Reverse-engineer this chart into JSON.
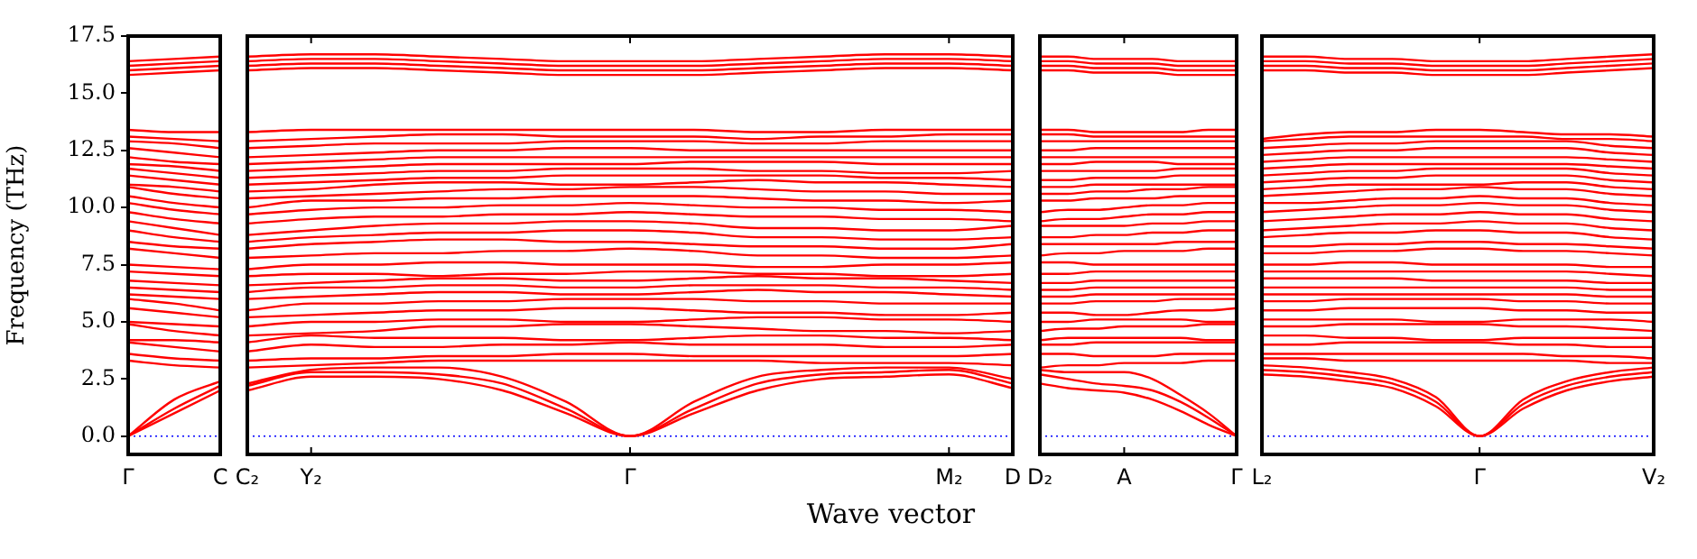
{
  "chart_data": [
    {
      "type": "line",
      "ylabel": "Frequency (THz)",
      "color": "#ff0000",
      "categories": [
        "Γ",
        null,
        "C"
      ],
      "ylim": [
        -0.8,
        17.5
      ],
      "yticks": [
        {
          "value": 0,
          "label": "0.0"
        },
        {
          "value": 2.5,
          "label": "2.5"
        },
        {
          "value": 5,
          "label": "5.0"
        },
        {
          "value": 7.5,
          "label": "7.5"
        },
        {
          "value": 10,
          "label": "10.0"
        },
        {
          "value": 12.5,
          "label": "12.5"
        },
        {
          "value": 15,
          "label": "15.0"
        },
        {
          "value": 17.5,
          "label": "17.5"
        }
      ],
      "ref_lines": [
        {
          "axis": "y",
          "value": 0,
          "color": "#0000ff",
          "line_style": "dotted"
        }
      ],
      "series": [
        {
          "values": [
            0,
            1.0,
            2.0
          ]
        },
        {
          "values": [
            0,
            1.2,
            2.2
          ]
        },
        {
          "values": [
            0,
            1.6,
            2.4
          ]
        },
        {
          "values": [
            3.3,
            3.1,
            3.0
          ]
        },
        {
          "values": [
            3.6,
            3.4,
            3.3
          ]
        },
        {
          "values": [
            4.1,
            3.9,
            3.7
          ]
        },
        {
          "values": [
            4.2,
            4.2,
            4.1
          ]
        },
        {
          "values": [
            4.9,
            4.6,
            4.4
          ]
        },
        {
          "values": [
            5.0,
            4.9,
            4.8
          ]
        },
        {
          "values": [
            5.6,
            5.4,
            5.2
          ]
        },
        {
          "values": [
            6.0,
            5.8,
            5.5
          ]
        },
        {
          "values": [
            6.2,
            6.1,
            6.0
          ]
        },
        {
          "values": [
            6.5,
            6.4,
            6.3
          ]
        },
        {
          "values": [
            6.8,
            6.7,
            6.6
          ]
        },
        {
          "values": [
            7.2,
            7.1,
            7.0
          ]
        },
        {
          "values": [
            7.5,
            7.4,
            7.3
          ]
        },
        {
          "values": [
            8.2,
            8.0,
            7.8
          ]
        },
        {
          "values": [
            8.5,
            8.3,
            8.2
          ]
        },
        {
          "values": [
            9.0,
            8.7,
            8.5
          ]
        },
        {
          "values": [
            9.4,
            9.1,
            8.8
          ]
        },
        {
          "values": [
            9.8,
            9.5,
            9.3
          ]
        },
        {
          "values": [
            10.2,
            9.9,
            9.7
          ]
        },
        {
          "values": [
            10.5,
            10.2,
            10.0
          ]
        },
        {
          "values": [
            10.9,
            10.6,
            10.4
          ]
        },
        {
          "values": [
            11.0,
            10.9,
            10.7
          ]
        },
        {
          "values": [
            11.4,
            11.2,
            11.0
          ]
        },
        {
          "values": [
            11.7,
            11.5,
            11.3
          ]
        },
        {
          "values": [
            11.9,
            11.8,
            11.6
          ]
        },
        {
          "values": [
            12.2,
            12.0,
            11.9
          ]
        },
        {
          "values": [
            12.6,
            12.4,
            12.2
          ]
        },
        {
          "values": [
            12.9,
            12.8,
            12.6
          ]
        },
        {
          "values": [
            13.1,
            13.0,
            12.9
          ]
        },
        {
          "values": [
            13.4,
            13.3,
            13.3
          ]
        },
        {
          "values": [
            15.8,
            15.9,
            16.0
          ]
        },
        {
          "values": [
            16.0,
            16.1,
            16.2
          ]
        },
        {
          "values": [
            16.2,
            16.3,
            16.4
          ]
        },
        {
          "values": [
            16.4,
            16.5,
            16.6
          ]
        }
      ]
    },
    {
      "type": "line",
      "xlabel": "Wave vector",
      "color": "#ff0000",
      "tick_labels": "x",
      "categories": [
        "C₂",
        "Y₂",
        null,
        null,
        null,
        null,
        "Γ",
        null,
        null,
        null,
        null,
        "M₂",
        "D"
      ],
      "ylim": [
        -0.8,
        17.5
      ],
      "ref_lines": [
        {
          "axis": "y",
          "value": 0,
          "color": "#0000ff",
          "line_style": "dotted"
        }
      ],
      "series": [
        {
          "values": [
            2.0,
            2.6,
            2.6,
            2.5,
            2.0,
            1.0,
            0,
            1.0,
            2.0,
            2.5,
            2.6,
            2.7,
            2.1
          ]
        },
        {
          "values": [
            2.2,
            2.8,
            2.8,
            2.7,
            2.3,
            1.2,
            0,
            1.2,
            2.3,
            2.7,
            2.8,
            2.9,
            2.3
          ]
        },
        {
          "values": [
            2.3,
            2.9,
            3.0,
            3.0,
            2.6,
            1.5,
            0,
            1.5,
            2.6,
            2.9,
            3.0,
            3.0,
            2.5
          ]
        },
        {
          "values": [
            3.0,
            3.1,
            3.2,
            3.3,
            3.3,
            3.3,
            3.3,
            3.3,
            3.3,
            3.2,
            3.2,
            3.2,
            3.1
          ]
        },
        {
          "values": [
            3.3,
            3.4,
            3.4,
            3.5,
            3.5,
            3.6,
            3.6,
            3.5,
            3.5,
            3.5,
            3.5,
            3.5,
            3.6
          ]
        },
        {
          "values": [
            3.7,
            4.0,
            3.9,
            3.9,
            4.0,
            4.0,
            4.1,
            4.0,
            4.0,
            4.0,
            3.9,
            3.9,
            4.0
          ]
        },
        {
          "values": [
            4.1,
            4.4,
            4.3,
            4.3,
            4.3,
            4.2,
            4.2,
            4.3,
            4.4,
            4.4,
            4.3,
            4.3,
            4.2
          ]
        },
        {
          "values": [
            4.4,
            4.5,
            4.6,
            4.8,
            4.8,
            4.9,
            4.9,
            4.8,
            4.7,
            4.6,
            4.6,
            4.5,
            4.6
          ]
        },
        {
          "values": [
            4.8,
            5.0,
            5.0,
            5.1,
            5.1,
            5.0,
            5.0,
            5.1,
            5.2,
            5.2,
            5.1,
            5.1,
            5.0
          ]
        },
        {
          "values": [
            5.2,
            5.3,
            5.4,
            5.5,
            5.5,
            5.6,
            5.6,
            5.5,
            5.4,
            5.4,
            5.3,
            5.3,
            5.4
          ]
        },
        {
          "values": [
            5.5,
            5.8,
            5.8,
            5.9,
            5.9,
            6.0,
            6.0,
            6.0,
            5.9,
            5.9,
            5.8,
            5.8,
            5.8
          ]
        },
        {
          "values": [
            6.0,
            6.1,
            6.2,
            6.3,
            6.3,
            6.2,
            6.2,
            6.3,
            6.4,
            6.3,
            6.3,
            6.2,
            6.1
          ]
        },
        {
          "values": [
            6.3,
            6.5,
            6.5,
            6.6,
            6.6,
            6.5,
            6.5,
            6.6,
            6.6,
            6.6,
            6.5,
            6.5,
            6.4
          ]
        },
        {
          "values": [
            6.6,
            6.7,
            6.8,
            6.9,
            6.9,
            6.8,
            6.8,
            6.9,
            7.0,
            6.9,
            6.9,
            6.8,
            6.7
          ]
        },
        {
          "values": [
            7.0,
            7.1,
            7.1,
            7.0,
            7.1,
            7.1,
            7.2,
            7.2,
            7.1,
            7.1,
            7.0,
            7.0,
            7.1
          ]
        },
        {
          "values": [
            7.3,
            7.5,
            7.5,
            7.6,
            7.6,
            7.5,
            7.5,
            7.5,
            7.4,
            7.4,
            7.5,
            7.5,
            7.6
          ]
        },
        {
          "values": [
            7.8,
            7.9,
            8.0,
            8.0,
            8.1,
            8.1,
            8.2,
            8.1,
            7.9,
            7.9,
            7.8,
            7.8,
            7.9
          ]
        },
        {
          "values": [
            8.2,
            8.4,
            8.5,
            8.6,
            8.6,
            8.5,
            8.5,
            8.4,
            8.3,
            8.3,
            8.2,
            8.2,
            8.4
          ]
        },
        {
          "values": [
            8.5,
            8.7,
            8.8,
            8.9,
            8.9,
            9.0,
            9.0,
            8.9,
            8.7,
            8.7,
            8.6,
            8.6,
            8.7
          ]
        },
        {
          "values": [
            8.8,
            9.0,
            9.2,
            9.3,
            9.3,
            9.4,
            9.4,
            9.3,
            9.1,
            9.1,
            9.0,
            9.0,
            9.2
          ]
        },
        {
          "values": [
            9.3,
            9.5,
            9.6,
            9.6,
            9.7,
            9.7,
            9.8,
            9.7,
            9.6,
            9.6,
            9.5,
            9.5,
            9.4
          ]
        },
        {
          "values": [
            9.7,
            9.9,
            10.0,
            10.0,
            10.1,
            10.1,
            10.2,
            10.1,
            10.0,
            10.0,
            9.9,
            9.9,
            9.8
          ]
        },
        {
          "values": [
            10.0,
            10.3,
            10.3,
            10.4,
            10.4,
            10.5,
            10.5,
            10.5,
            10.4,
            10.3,
            10.3,
            10.2,
            10.3
          ]
        },
        {
          "values": [
            10.4,
            10.5,
            10.6,
            10.7,
            10.8,
            10.8,
            10.9,
            10.9,
            10.8,
            10.7,
            10.7,
            10.6,
            10.6
          ]
        },
        {
          "values": [
            10.7,
            10.8,
            11.0,
            11.1,
            11.1,
            11.0,
            11.0,
            11.1,
            11.2,
            11.1,
            11.1,
            11.0,
            10.9
          ]
        },
        {
          "values": [
            11.0,
            11.1,
            11.2,
            11.3,
            11.3,
            11.4,
            11.4,
            11.4,
            11.4,
            11.4,
            11.3,
            11.3,
            11.2
          ]
        },
        {
          "values": [
            11.3,
            11.4,
            11.5,
            11.6,
            11.6,
            11.7,
            11.7,
            11.7,
            11.6,
            11.6,
            11.5,
            11.5,
            11.6
          ]
        },
        {
          "values": [
            11.6,
            11.7,
            11.8,
            11.9,
            11.9,
            11.9,
            11.9,
            12.0,
            12.0,
            12.0,
            11.9,
            11.9,
            11.9
          ]
        },
        {
          "values": [
            11.9,
            12.0,
            12.1,
            12.2,
            12.2,
            12.2,
            12.2,
            12.2,
            12.2,
            12.2,
            12.2,
            12.2,
            12.2
          ]
        },
        {
          "values": [
            12.2,
            12.3,
            12.4,
            12.5,
            12.5,
            12.6,
            12.6,
            12.5,
            12.5,
            12.5,
            12.5,
            12.5,
            12.5
          ]
        },
        {
          "values": [
            12.6,
            12.7,
            12.8,
            12.8,
            12.8,
            12.9,
            12.9,
            12.9,
            12.8,
            12.8,
            12.9,
            12.9,
            12.9
          ]
        },
        {
          "values": [
            12.9,
            13.0,
            13.1,
            13.2,
            13.2,
            13.1,
            13.1,
            13.1,
            13.0,
            13.1,
            13.1,
            13.2,
            13.2
          ]
        },
        {
          "values": [
            13.3,
            13.4,
            13.4,
            13.4,
            13.4,
            13.4,
            13.4,
            13.4,
            13.3,
            13.3,
            13.4,
            13.4,
            13.4
          ]
        },
        {
          "values": [
            16.0,
            16.1,
            16.1,
            16.0,
            15.9,
            15.8,
            15.8,
            15.8,
            15.9,
            16.0,
            16.1,
            16.1,
            16.0
          ]
        },
        {
          "values": [
            16.2,
            16.3,
            16.3,
            16.2,
            16.1,
            16.0,
            16.0,
            16.0,
            16.1,
            16.2,
            16.3,
            16.3,
            16.2
          ]
        },
        {
          "values": [
            16.4,
            16.5,
            16.5,
            16.4,
            16.3,
            16.2,
            16.2,
            16.2,
            16.3,
            16.4,
            16.5,
            16.5,
            16.4
          ]
        },
        {
          "values": [
            16.6,
            16.7,
            16.7,
            16.6,
            16.5,
            16.4,
            16.4,
            16.4,
            16.5,
            16.6,
            16.7,
            16.7,
            16.6
          ]
        }
      ]
    },
    {
      "type": "line",
      "color": "#ff0000",
      "tick_labels": "x",
      "categories": [
        "D₂",
        null,
        null,
        "A",
        null,
        null,
        null,
        "Γ"
      ],
      "ylim": [
        -0.8,
        17.5
      ],
      "ref_lines": [
        {
          "axis": "y",
          "value": 0,
          "color": "#0000ff",
          "line_style": "dotted"
        }
      ],
      "series": [
        {
          "values": [
            2.3,
            2.1,
            2.0,
            1.9,
            1.6,
            1.1,
            0.5,
            0
          ]
        },
        {
          "values": [
            2.7,
            2.5,
            2.3,
            2.2,
            2.0,
            1.5,
            0.8,
            0
          ]
        },
        {
          "values": [
            2.9,
            2.8,
            2.8,
            2.8,
            2.5,
            1.8,
            1.0,
            0
          ]
        },
        {
          "values": [
            3.0,
            3.1,
            3.1,
            3.2,
            3.2,
            3.2,
            3.3,
            3.3
          ]
        },
        {
          "values": [
            3.6,
            3.6,
            3.5,
            3.5,
            3.5,
            3.6,
            3.6,
            3.6
          ]
        },
        {
          "values": [
            4.0,
            4.0,
            4.1,
            4.1,
            4.1,
            4.1,
            4.1,
            4.1
          ]
        },
        {
          "values": [
            4.2,
            4.3,
            4.3,
            4.3,
            4.3,
            4.3,
            4.2,
            4.2
          ]
        },
        {
          "values": [
            4.6,
            4.7,
            4.7,
            4.8,
            4.8,
            4.8,
            4.9,
            4.9
          ]
        },
        {
          "values": [
            5.0,
            5.0,
            5.1,
            5.1,
            5.1,
            5.1,
            5.0,
            5.0
          ]
        },
        {
          "values": [
            5.4,
            5.4,
            5.3,
            5.3,
            5.4,
            5.5,
            5.5,
            5.6
          ]
        },
        {
          "values": [
            5.8,
            5.8,
            5.9,
            5.9,
            5.9,
            6.0,
            6.0,
            6.0
          ]
        },
        {
          "values": [
            6.1,
            6.1,
            6.2,
            6.2,
            6.2,
            6.2,
            6.2,
            6.2
          ]
        },
        {
          "values": [
            6.4,
            6.4,
            6.5,
            6.5,
            6.5,
            6.5,
            6.5,
            6.5
          ]
        },
        {
          "values": [
            6.7,
            6.7,
            6.8,
            6.8,
            6.8,
            6.8,
            6.8,
            6.8
          ]
        },
        {
          "values": [
            7.1,
            7.1,
            7.2,
            7.2,
            7.2,
            7.2,
            7.2,
            7.2
          ]
        },
        {
          "values": [
            7.6,
            7.6,
            7.5,
            7.5,
            7.5,
            7.5,
            7.5,
            7.5
          ]
        },
        {
          "values": [
            7.9,
            8.0,
            8.0,
            8.1,
            8.1,
            8.1,
            8.2,
            8.2
          ]
        },
        {
          "values": [
            8.4,
            8.4,
            8.4,
            8.4,
            8.4,
            8.5,
            8.5,
            8.5
          ]
        },
        {
          "values": [
            8.7,
            8.7,
            8.8,
            8.8,
            8.9,
            8.9,
            9.0,
            9.0
          ]
        },
        {
          "values": [
            9.2,
            9.2,
            9.2,
            9.2,
            9.3,
            9.3,
            9.4,
            9.4
          ]
        },
        {
          "values": [
            9.4,
            9.5,
            9.5,
            9.6,
            9.7,
            9.7,
            9.8,
            9.8
          ]
        },
        {
          "values": [
            9.8,
            9.9,
            9.9,
            10.0,
            10.1,
            10.1,
            10.2,
            10.2
          ]
        },
        {
          "values": [
            10.3,
            10.3,
            10.4,
            10.4,
            10.4,
            10.5,
            10.5,
            10.5
          ]
        },
        {
          "values": [
            10.6,
            10.6,
            10.7,
            10.7,
            10.8,
            10.8,
            10.9,
            10.9
          ]
        },
        {
          "values": [
            10.9,
            10.9,
            11.0,
            11.0,
            11.0,
            11.0,
            11.0,
            11.0
          ]
        },
        {
          "values": [
            11.2,
            11.2,
            11.3,
            11.3,
            11.3,
            11.4,
            11.4,
            11.4
          ]
        },
        {
          "values": [
            11.6,
            11.6,
            11.6,
            11.6,
            11.6,
            11.7,
            11.7,
            11.7
          ]
        },
        {
          "values": [
            11.9,
            11.9,
            12.0,
            12.0,
            12.0,
            11.9,
            11.9,
            11.9
          ]
        },
        {
          "values": [
            12.2,
            12.2,
            12.2,
            12.2,
            12.2,
            12.2,
            12.2,
            12.2
          ]
        },
        {
          "values": [
            12.5,
            12.5,
            12.6,
            12.6,
            12.6,
            12.6,
            12.6,
            12.6
          ]
        },
        {
          "values": [
            12.9,
            12.9,
            12.9,
            12.9,
            12.9,
            12.9,
            12.9,
            12.9
          ]
        },
        {
          "values": [
            13.2,
            13.2,
            13.1,
            13.1,
            13.1,
            13.1,
            13.1,
            13.1
          ]
        },
        {
          "values": [
            13.4,
            13.4,
            13.3,
            13.3,
            13.3,
            13.3,
            13.4,
            13.4
          ]
        },
        {
          "values": [
            16.0,
            16.0,
            15.9,
            15.9,
            15.9,
            15.8,
            15.8,
            15.8
          ]
        },
        {
          "values": [
            16.2,
            16.2,
            16.1,
            16.1,
            16.1,
            16.0,
            16.0,
            16.0
          ]
        },
        {
          "values": [
            16.4,
            16.4,
            16.3,
            16.3,
            16.3,
            16.2,
            16.2,
            16.2
          ]
        },
        {
          "values": [
            16.6,
            16.6,
            16.5,
            16.5,
            16.5,
            16.4,
            16.4,
            16.4
          ]
        }
      ]
    },
    {
      "type": "line",
      "color": "#ff0000",
      "tick_labels": "x",
      "categories": [
        "L₂",
        null,
        null,
        null,
        null,
        "Γ",
        null,
        null,
        null,
        "V₂"
      ],
      "ylim": [
        -0.8,
        17.5
      ],
      "ref_lines": [
        {
          "axis": "y",
          "value": 0,
          "color": "#0000ff",
          "line_style": "dotted"
        }
      ],
      "series": [
        {
          "values": [
            2.7,
            2.6,
            2.4,
            2.1,
            1.3,
            0,
            1.2,
            2.0,
            2.4,
            2.6
          ]
        },
        {
          "values": [
            2.9,
            2.8,
            2.6,
            2.3,
            1.5,
            0,
            1.4,
            2.2,
            2.6,
            2.8
          ]
        },
        {
          "values": [
            3.1,
            3.0,
            2.8,
            2.5,
            1.7,
            0,
            1.6,
            2.4,
            2.8,
            3.0
          ]
        },
        {
          "values": [
            3.4,
            3.4,
            3.3,
            3.3,
            3.3,
            3.3,
            3.3,
            3.3,
            3.2,
            3.2
          ]
        },
        {
          "values": [
            3.6,
            3.6,
            3.6,
            3.6,
            3.6,
            3.6,
            3.6,
            3.5,
            3.5,
            3.4
          ]
        },
        {
          "values": [
            4.0,
            4.0,
            4.1,
            4.1,
            4.1,
            4.1,
            4.0,
            4.0,
            3.9,
            3.9
          ]
        },
        {
          "values": [
            4.4,
            4.4,
            4.3,
            4.3,
            4.2,
            4.2,
            4.3,
            4.3,
            4.3,
            4.3
          ]
        },
        {
          "values": [
            4.8,
            4.8,
            4.9,
            4.9,
            4.9,
            4.9,
            4.8,
            4.8,
            4.7,
            4.6
          ]
        },
        {
          "values": [
            5.1,
            5.1,
            5.1,
            5.1,
            5.0,
            5.0,
            5.1,
            5.1,
            5.1,
            5.0
          ]
        },
        {
          "values": [
            5.5,
            5.5,
            5.6,
            5.6,
            5.6,
            5.6,
            5.5,
            5.5,
            5.4,
            5.4
          ]
        },
        {
          "values": [
            5.9,
            5.9,
            6.0,
            6.0,
            6.0,
            6.0,
            5.9,
            5.9,
            5.8,
            5.8
          ]
        },
        {
          "values": [
            6.2,
            6.2,
            6.2,
            6.2,
            6.2,
            6.2,
            6.2,
            6.2,
            6.1,
            6.1
          ]
        },
        {
          "values": [
            6.5,
            6.5,
            6.5,
            6.5,
            6.5,
            6.5,
            6.5,
            6.5,
            6.4,
            6.4
          ]
        },
        {
          "values": [
            6.9,
            6.9,
            6.9,
            6.9,
            6.8,
            6.8,
            6.8,
            6.8,
            6.7,
            6.7
          ]
        },
        {
          "values": [
            7.2,
            7.2,
            7.2,
            7.2,
            7.2,
            7.2,
            7.2,
            7.2,
            7.1,
            7.0
          ]
        },
        {
          "values": [
            7.5,
            7.5,
            7.6,
            7.6,
            7.5,
            7.5,
            7.5,
            7.5,
            7.4,
            7.4
          ]
        },
        {
          "values": [
            8.0,
            8.0,
            8.1,
            8.1,
            8.2,
            8.2,
            8.1,
            8.1,
            8.0,
            7.9
          ]
        },
        {
          "values": [
            8.3,
            8.3,
            8.4,
            8.4,
            8.5,
            8.5,
            8.4,
            8.4,
            8.3,
            8.2
          ]
        },
        {
          "values": [
            8.7,
            8.8,
            8.9,
            8.9,
            9.0,
            9.0,
            8.9,
            8.9,
            8.7,
            8.6
          ]
        },
        {
          "values": [
            9.0,
            9.1,
            9.2,
            9.3,
            9.3,
            9.4,
            9.3,
            9.3,
            9.1,
            9.0
          ]
        },
        {
          "values": [
            9.4,
            9.5,
            9.6,
            9.7,
            9.7,
            9.8,
            9.7,
            9.7,
            9.5,
            9.4
          ]
        },
        {
          "values": [
            9.8,
            9.9,
            10.0,
            10.1,
            10.1,
            10.2,
            10.1,
            10.1,
            9.9,
            9.8
          ]
        },
        {
          "values": [
            10.2,
            10.2,
            10.3,
            10.4,
            10.4,
            10.5,
            10.4,
            10.4,
            10.2,
            10.1
          ]
        },
        {
          "values": [
            10.5,
            10.6,
            10.7,
            10.8,
            10.8,
            10.9,
            10.8,
            10.8,
            10.6,
            10.5
          ]
        },
        {
          "values": [
            10.8,
            10.9,
            11.0,
            11.0,
            11.0,
            11.0,
            11.1,
            11.1,
            10.9,
            10.8
          ]
        },
        {
          "values": [
            11.1,
            11.2,
            11.3,
            11.3,
            11.4,
            11.4,
            11.4,
            11.4,
            11.2,
            11.1
          ]
        },
        {
          "values": [
            11.4,
            11.5,
            11.6,
            11.6,
            11.7,
            11.7,
            11.7,
            11.7,
            11.5,
            11.4
          ]
        },
        {
          "values": [
            11.7,
            11.8,
            11.9,
            11.9,
            11.9,
            11.9,
            11.9,
            11.9,
            11.8,
            11.7
          ]
        },
        {
          "values": [
            12.0,
            12.1,
            12.2,
            12.2,
            12.2,
            12.2,
            12.2,
            12.2,
            12.1,
            12.0
          ]
        },
        {
          "values": [
            12.3,
            12.4,
            12.5,
            12.5,
            12.6,
            12.6,
            12.6,
            12.6,
            12.4,
            12.3
          ]
        },
        {
          "values": [
            12.6,
            12.7,
            12.8,
            12.8,
            12.9,
            12.9,
            12.9,
            12.9,
            12.7,
            12.6
          ]
        },
        {
          "values": [
            12.9,
            13.0,
            13.1,
            13.1,
            13.1,
            13.1,
            13.1,
            13.0,
            13.0,
            12.9
          ]
        },
        {
          "values": [
            13.0,
            13.2,
            13.3,
            13.3,
            13.4,
            13.4,
            13.3,
            13.2,
            13.2,
            13.1
          ]
        },
        {
          "values": [
            16.0,
            16.0,
            15.9,
            15.9,
            15.8,
            15.8,
            15.8,
            15.9,
            16.0,
            16.1
          ]
        },
        {
          "values": [
            16.2,
            16.2,
            16.1,
            16.1,
            16.0,
            16.0,
            16.0,
            16.1,
            16.2,
            16.3
          ]
        },
        {
          "values": [
            16.4,
            16.4,
            16.3,
            16.3,
            16.2,
            16.2,
            16.2,
            16.3,
            16.4,
            16.5
          ]
        },
        {
          "values": [
            16.6,
            16.6,
            16.5,
            16.5,
            16.4,
            16.4,
            16.4,
            16.5,
            16.6,
            16.7
          ]
        }
      ]
    }
  ]
}
